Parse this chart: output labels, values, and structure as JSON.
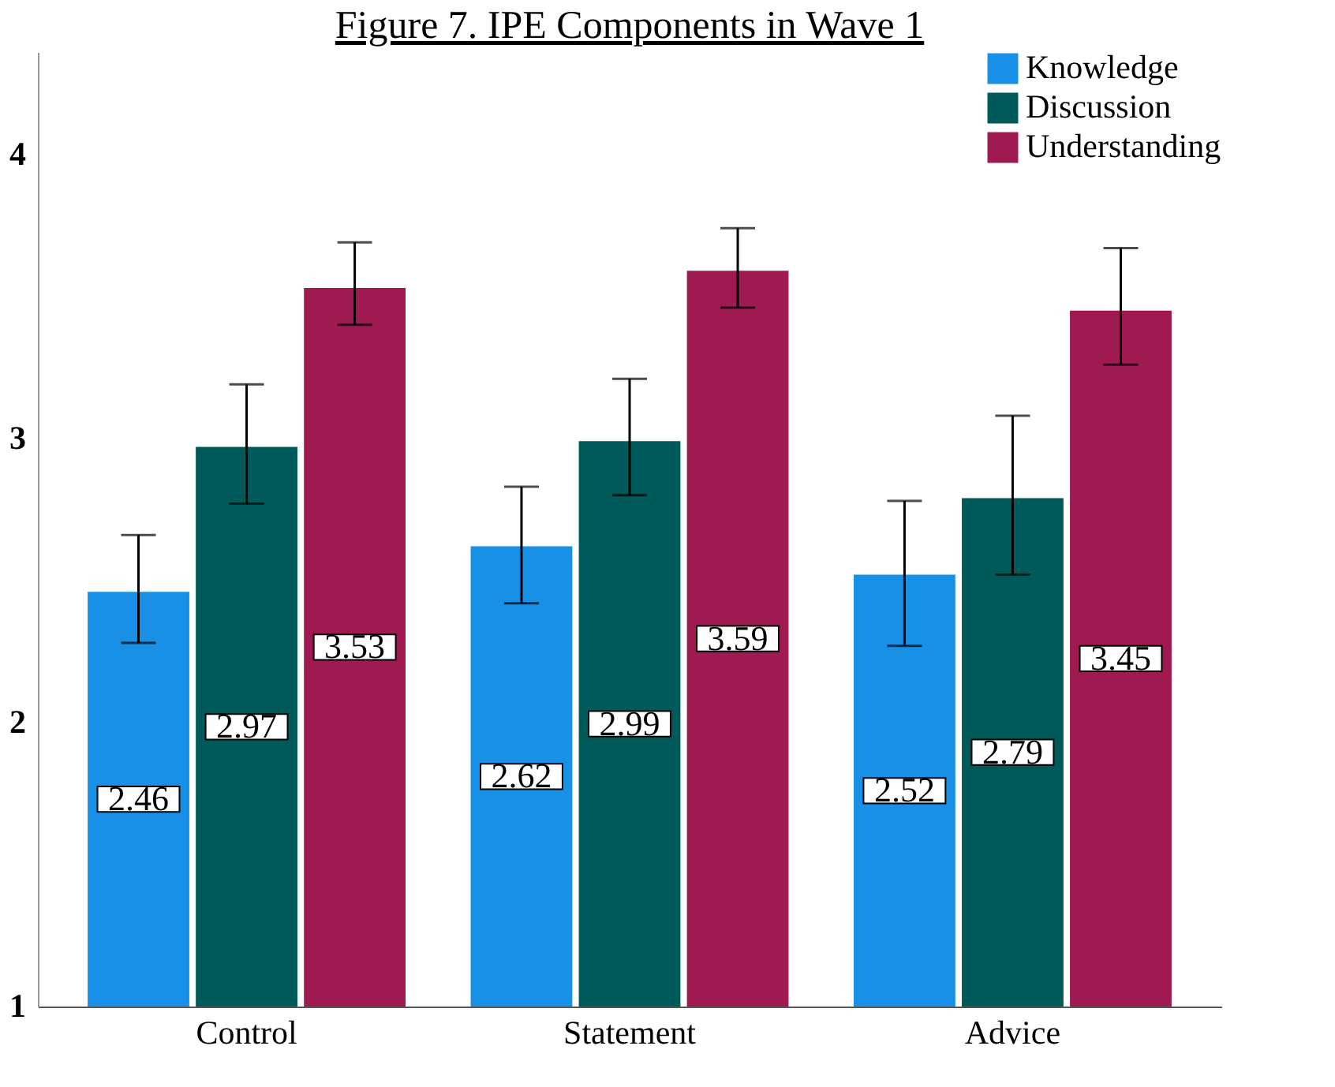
{
  "chart_data": {
    "type": "bar",
    "title": "Figure 7. IPE Components in Wave 1",
    "categories": [
      "Control",
      "Statement",
      "Advice"
    ],
    "series": [
      {
        "name": "Knowledge",
        "color": "#1790e6",
        "values": [
          2.46,
          2.62,
          2.52
        ],
        "errors": [
          [
            2.28,
            2.66
          ],
          [
            2.42,
            2.83
          ],
          [
            2.27,
            2.78
          ]
        ]
      },
      {
        "name": "Discussion",
        "color": "#005a5a",
        "values": [
          2.97,
          2.99,
          2.79
        ],
        "errors": [
          [
            2.77,
            3.19
          ],
          [
            2.8,
            3.21
          ],
          [
            2.52,
            3.08
          ]
        ]
      },
      {
        "name": "Understanding",
        "color": "#9e1a50",
        "values": [
          3.53,
          3.59,
          3.45
        ],
        "errors": [
          [
            3.4,
            3.69
          ],
          [
            3.46,
            3.74
          ],
          [
            3.26,
            3.67
          ]
        ]
      }
    ],
    "ylim": [
      1,
      4.36
    ],
    "yticks": [
      1,
      2,
      3,
      4
    ],
    "data_labels": true,
    "legend": "top right",
    "grid": false
  }
}
